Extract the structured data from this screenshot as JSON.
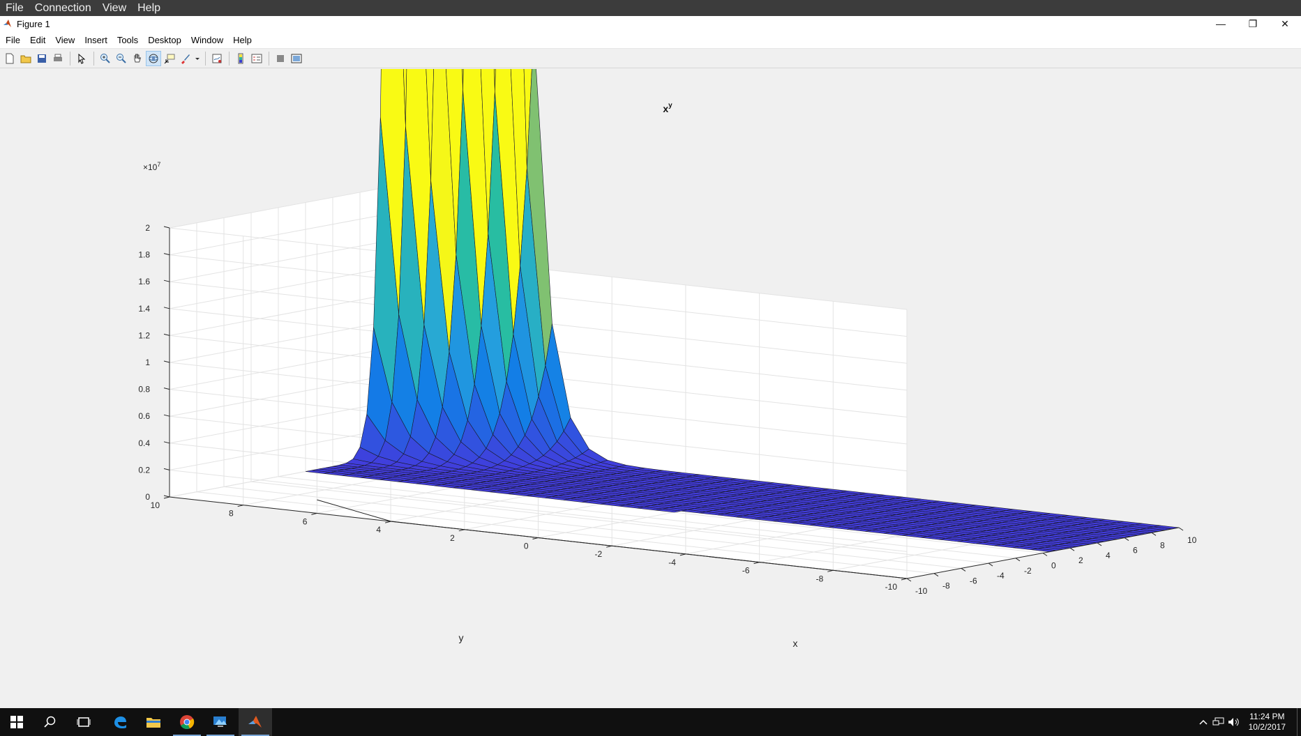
{
  "remote_menu": [
    "File",
    "Connection",
    "View",
    "Help"
  ],
  "window": {
    "title": "Figure 1",
    "controls": {
      "minimize": "—",
      "restore": "❐",
      "close": "✕"
    }
  },
  "menu": [
    "File",
    "Edit",
    "View",
    "Insert",
    "Tools",
    "Desktop",
    "Window",
    "Help"
  ],
  "toolbar_icons": [
    "new-figure-icon",
    "open-file-icon",
    "save-icon",
    "print-icon",
    "edit-plot-icon",
    "zoom-in-icon",
    "zoom-out-icon",
    "pan-icon",
    "rotate-3d-icon",
    "data-cursor-icon",
    "brush-icon",
    "link-plot-icon",
    "insert-colorbar-icon",
    "insert-legend-icon",
    "hide-plot-tools-icon",
    "show-plot-tools-icon"
  ],
  "chart_data": {
    "type": "surface",
    "function": "x^y",
    "title_base": "x",
    "title_exp": "y",
    "xlabel": "x",
    "ylabel": "y",
    "x_ticks": [
      "-10",
      "-8",
      "-6",
      "-4",
      "-2",
      "0",
      "2",
      "4",
      "6",
      "8",
      "10"
    ],
    "y_ticks": [
      "-10",
      "-8",
      "-6",
      "-4",
      "-2",
      "0",
      "2",
      "4",
      "6",
      "8",
      "10"
    ],
    "z_ticks": [
      "0",
      "0.2",
      "0.4",
      "0.6",
      "0.8",
      "1",
      "1.2",
      "1.4",
      "1.6",
      "1.8",
      "2"
    ],
    "z_multiplier_base": "×10",
    "z_multiplier_exp": "7",
    "xlim": [
      -10,
      10
    ],
    "ylim": [
      -10,
      10
    ],
    "zlim": [
      0,
      20000000
    ],
    "grid": true,
    "colormap": "parula"
  },
  "taskbar": {
    "apps": [
      "windows-start-icon",
      "search-icon",
      "task-view-icon",
      "edge-icon",
      "file-explorer-icon",
      "chrome-icon",
      "remote-desktop-icon",
      "matlab-icon"
    ],
    "time": "11:24 PM",
    "date": "10/2/2017"
  }
}
